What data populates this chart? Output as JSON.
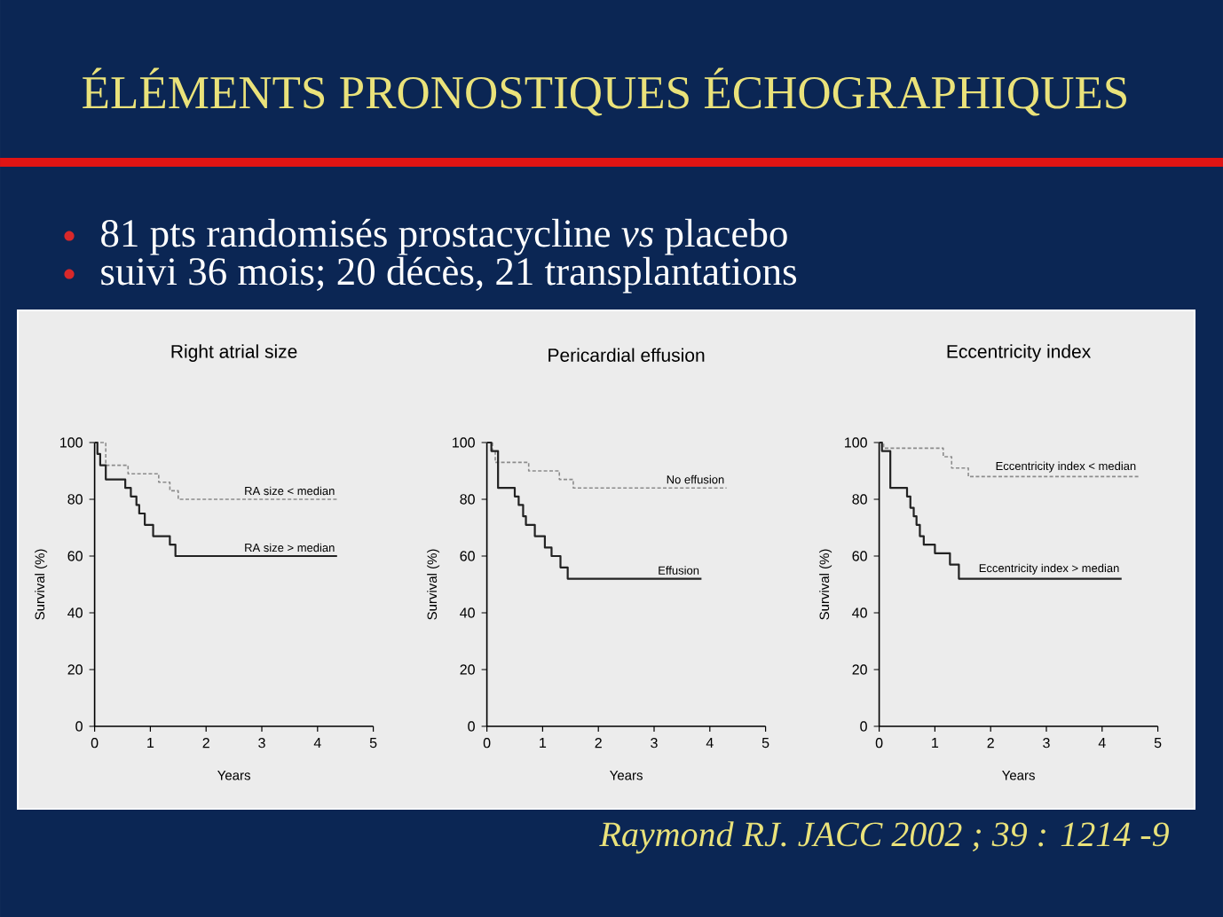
{
  "chart_data": [
    {
      "type": "other",
      "title": "ÉLÉMENTS PRONOSTIQUES ÉCHOGRAPHIQUES",
      "annotations": [
        "81 pts randomisés prostacycline *vs* placebo",
        "suivi 36 mois; 20 décès, 21 transplantations",
        "Raymond RJ. JACC 2002 ; 39 : 1214 -9"
      ]
    },
    {
      "type": "step",
      "title": "Right atrial size",
      "xlabel": "Years",
      "ylabel": "Survival (%)",
      "xlim": [
        0,
        5
      ],
      "xticks": [
        0,
        1,
        2,
        3,
        4,
        5
      ],
      "ylim": [
        0,
        100
      ],
      "yticks": [
        0,
        20,
        40,
        60,
        80,
        100
      ],
      "series": [
        {
          "name": "RA size < median",
          "color": "#8c8c8c",
          "line_style": "dashed",
          "x": [
            0,
            0.2,
            0.6,
            1.15,
            1.35,
            1.5,
            4.35
          ],
          "values": [
            100,
            92,
            89,
            86,
            83,
            80,
            80
          ]
        },
        {
          "name": "RA size > median",
          "color": "#222222",
          "line_style": "solid",
          "x": [
            0,
            0.05,
            0.1,
            0.2,
            0.55,
            0.65,
            0.75,
            0.8,
            0.9,
            1.05,
            1.35,
            1.45,
            4.35
          ],
          "values": [
            100,
            96,
            92,
            87,
            84,
            81,
            78,
            75,
            71,
            67,
            64,
            60,
            60
          ]
        }
      ]
    },
    {
      "type": "step",
      "title": "Pericardial effusion",
      "xlabel": "Years",
      "ylabel": "Survival (%)",
      "xlim": [
        0,
        5
      ],
      "xticks": [
        0,
        1,
        2,
        3,
        4,
        5
      ],
      "ylim": [
        0,
        100
      ],
      "yticks": [
        0,
        20,
        40,
        60,
        80,
        100
      ],
      "series": [
        {
          "name": "No effusion",
          "color": "#8c8c8c",
          "line_style": "dashed",
          "x": [
            0,
            0.1,
            0.15,
            0.75,
            1.3,
            1.55,
            4.3
          ],
          "values": [
            100,
            97,
            93,
            90,
            87,
            84,
            84
          ]
        },
        {
          "name": "Effusion",
          "color": "#222222",
          "line_style": "solid",
          "x": [
            0,
            0.08,
            0.2,
            0.5,
            0.57,
            0.65,
            0.7,
            0.86,
            1.04,
            1.16,
            1.32,
            1.45,
            3.85
          ],
          "values": [
            100,
            97,
            84,
            81,
            78,
            74,
            71,
            67,
            63,
            60,
            56,
            52,
            52
          ]
        }
      ]
    },
    {
      "type": "step",
      "title": "Eccentricity index",
      "xlabel": "Years",
      "ylabel": "Survival (%)",
      "xlim": [
        0,
        5
      ],
      "xticks": [
        0,
        1,
        2,
        3,
        4,
        5
      ],
      "ylim": [
        0,
        100
      ],
      "yticks": [
        0,
        20,
        40,
        60,
        80,
        100
      ],
      "series": [
        {
          "name": "Eccentricity index < median",
          "color": "#8c8c8c",
          "line_style": "dashed",
          "x": [
            0,
            0.08,
            1.15,
            1.3,
            1.6,
            4.65
          ],
          "values": [
            100,
            98,
            95,
            91,
            88,
            88
          ]
        },
        {
          "name": "Eccentricity index > median",
          "color": "#222222",
          "line_style": "solid",
          "x": [
            0,
            0.05,
            0.2,
            0.5,
            0.56,
            0.62,
            0.67,
            0.73,
            0.8,
            1.0,
            1.27,
            1.43,
            4.35
          ],
          "values": [
            100,
            97,
            84,
            81,
            77,
            74,
            71,
            67,
            64,
            61,
            57,
            52,
            52
          ]
        }
      ]
    }
  ]
}
